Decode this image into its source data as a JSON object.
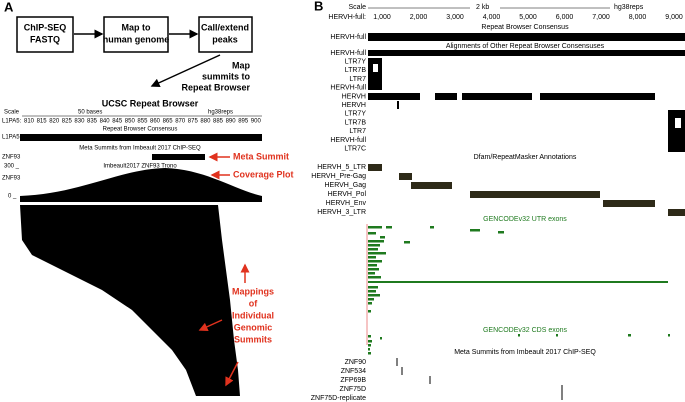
{
  "panel_a": {
    "label": "A",
    "flow": [
      [
        "ChIP-SEQ",
        "FASTQ"
      ],
      [
        "Map to",
        "human genome"
      ],
      [
        "Call/extend",
        "peaks"
      ]
    ],
    "arrow_label": [
      "Map",
      "summits to",
      "Repeat Browser"
    ],
    "browser_title": "UCSC Repeat Browser",
    "scale": "Scale",
    "scale_bar": "50 bases",
    "assembly": "hg38reps",
    "position_label": "L1PA5:",
    "positions": [
      "810",
      "815",
      "820",
      "825",
      "830",
      "835",
      "840",
      "845",
      "850",
      "855",
      "860",
      "865",
      "870",
      "875",
      "880",
      "885",
      "890",
      "895",
      "900"
    ],
    "consensus_title": "Repeat Browser Consensus",
    "consensus_track": "L1PA5",
    "summit_title": "Meta Summits from Imbeault 2017 ChIP-SEQ",
    "summit_track": "ZNF93",
    "coverage_max": "300 _",
    "coverage_title": "Imbeault2017 ZNF93 Trono",
    "coverage_track": "ZNF93",
    "coverage_min": "0 _",
    "callouts": [
      "Meta Summit",
      "Coverage Plot"
    ],
    "mappings_label": [
      "Mappings",
      "of",
      "Individual",
      "Genomic",
      "Summits"
    ]
  },
  "panel_b": {
    "label": "B",
    "scale": "Scale",
    "scale_bar": "2 kb",
    "assembly": "hg38reps",
    "position_label": "HERVH-full:",
    "positions": [
      "1,000",
      "2,000",
      "3,000",
      "4,000",
      "5,000",
      "6,000",
      "7,000",
      "8,000",
      "9,000"
    ],
    "consensus_title": "Repeat Browser Consensus",
    "consensus_track": "HERVH-full",
    "alignments_title": "Alignments of Other Repeat Browser Consensuses",
    "alignment_tracks": [
      "HERVH-full",
      "LTR7Y",
      "LTR7B",
      "LTR7",
      "HERVH-full",
      "HERVH",
      "HERVH",
      "LTR7Y",
      "LTR7B",
      "LTR7",
      "HERVH-full",
      "LTR7C"
    ],
    "dfam_title": "Dfam/RepeatMasker Annotations",
    "dfam_tracks": [
      "HERVH_5_LTR",
      "HERVH_Pre-Gag",
      "HERVH_Gag",
      "HERVH_Pol",
      "HERVH_Env",
      "HERVH_3_LTR"
    ],
    "utr_title": "GENCODEv32 UTR exons",
    "cds_title": "GENCODEv32 CDS exons",
    "summit_title": "Meta Summits from Imbeault 2017 ChIP-SEQ",
    "summit_tracks": [
      "ZNF90",
      "ZNF534",
      "ZFP69B",
      "ZNF75D",
      "ZNF75D-replicate"
    ]
  }
}
